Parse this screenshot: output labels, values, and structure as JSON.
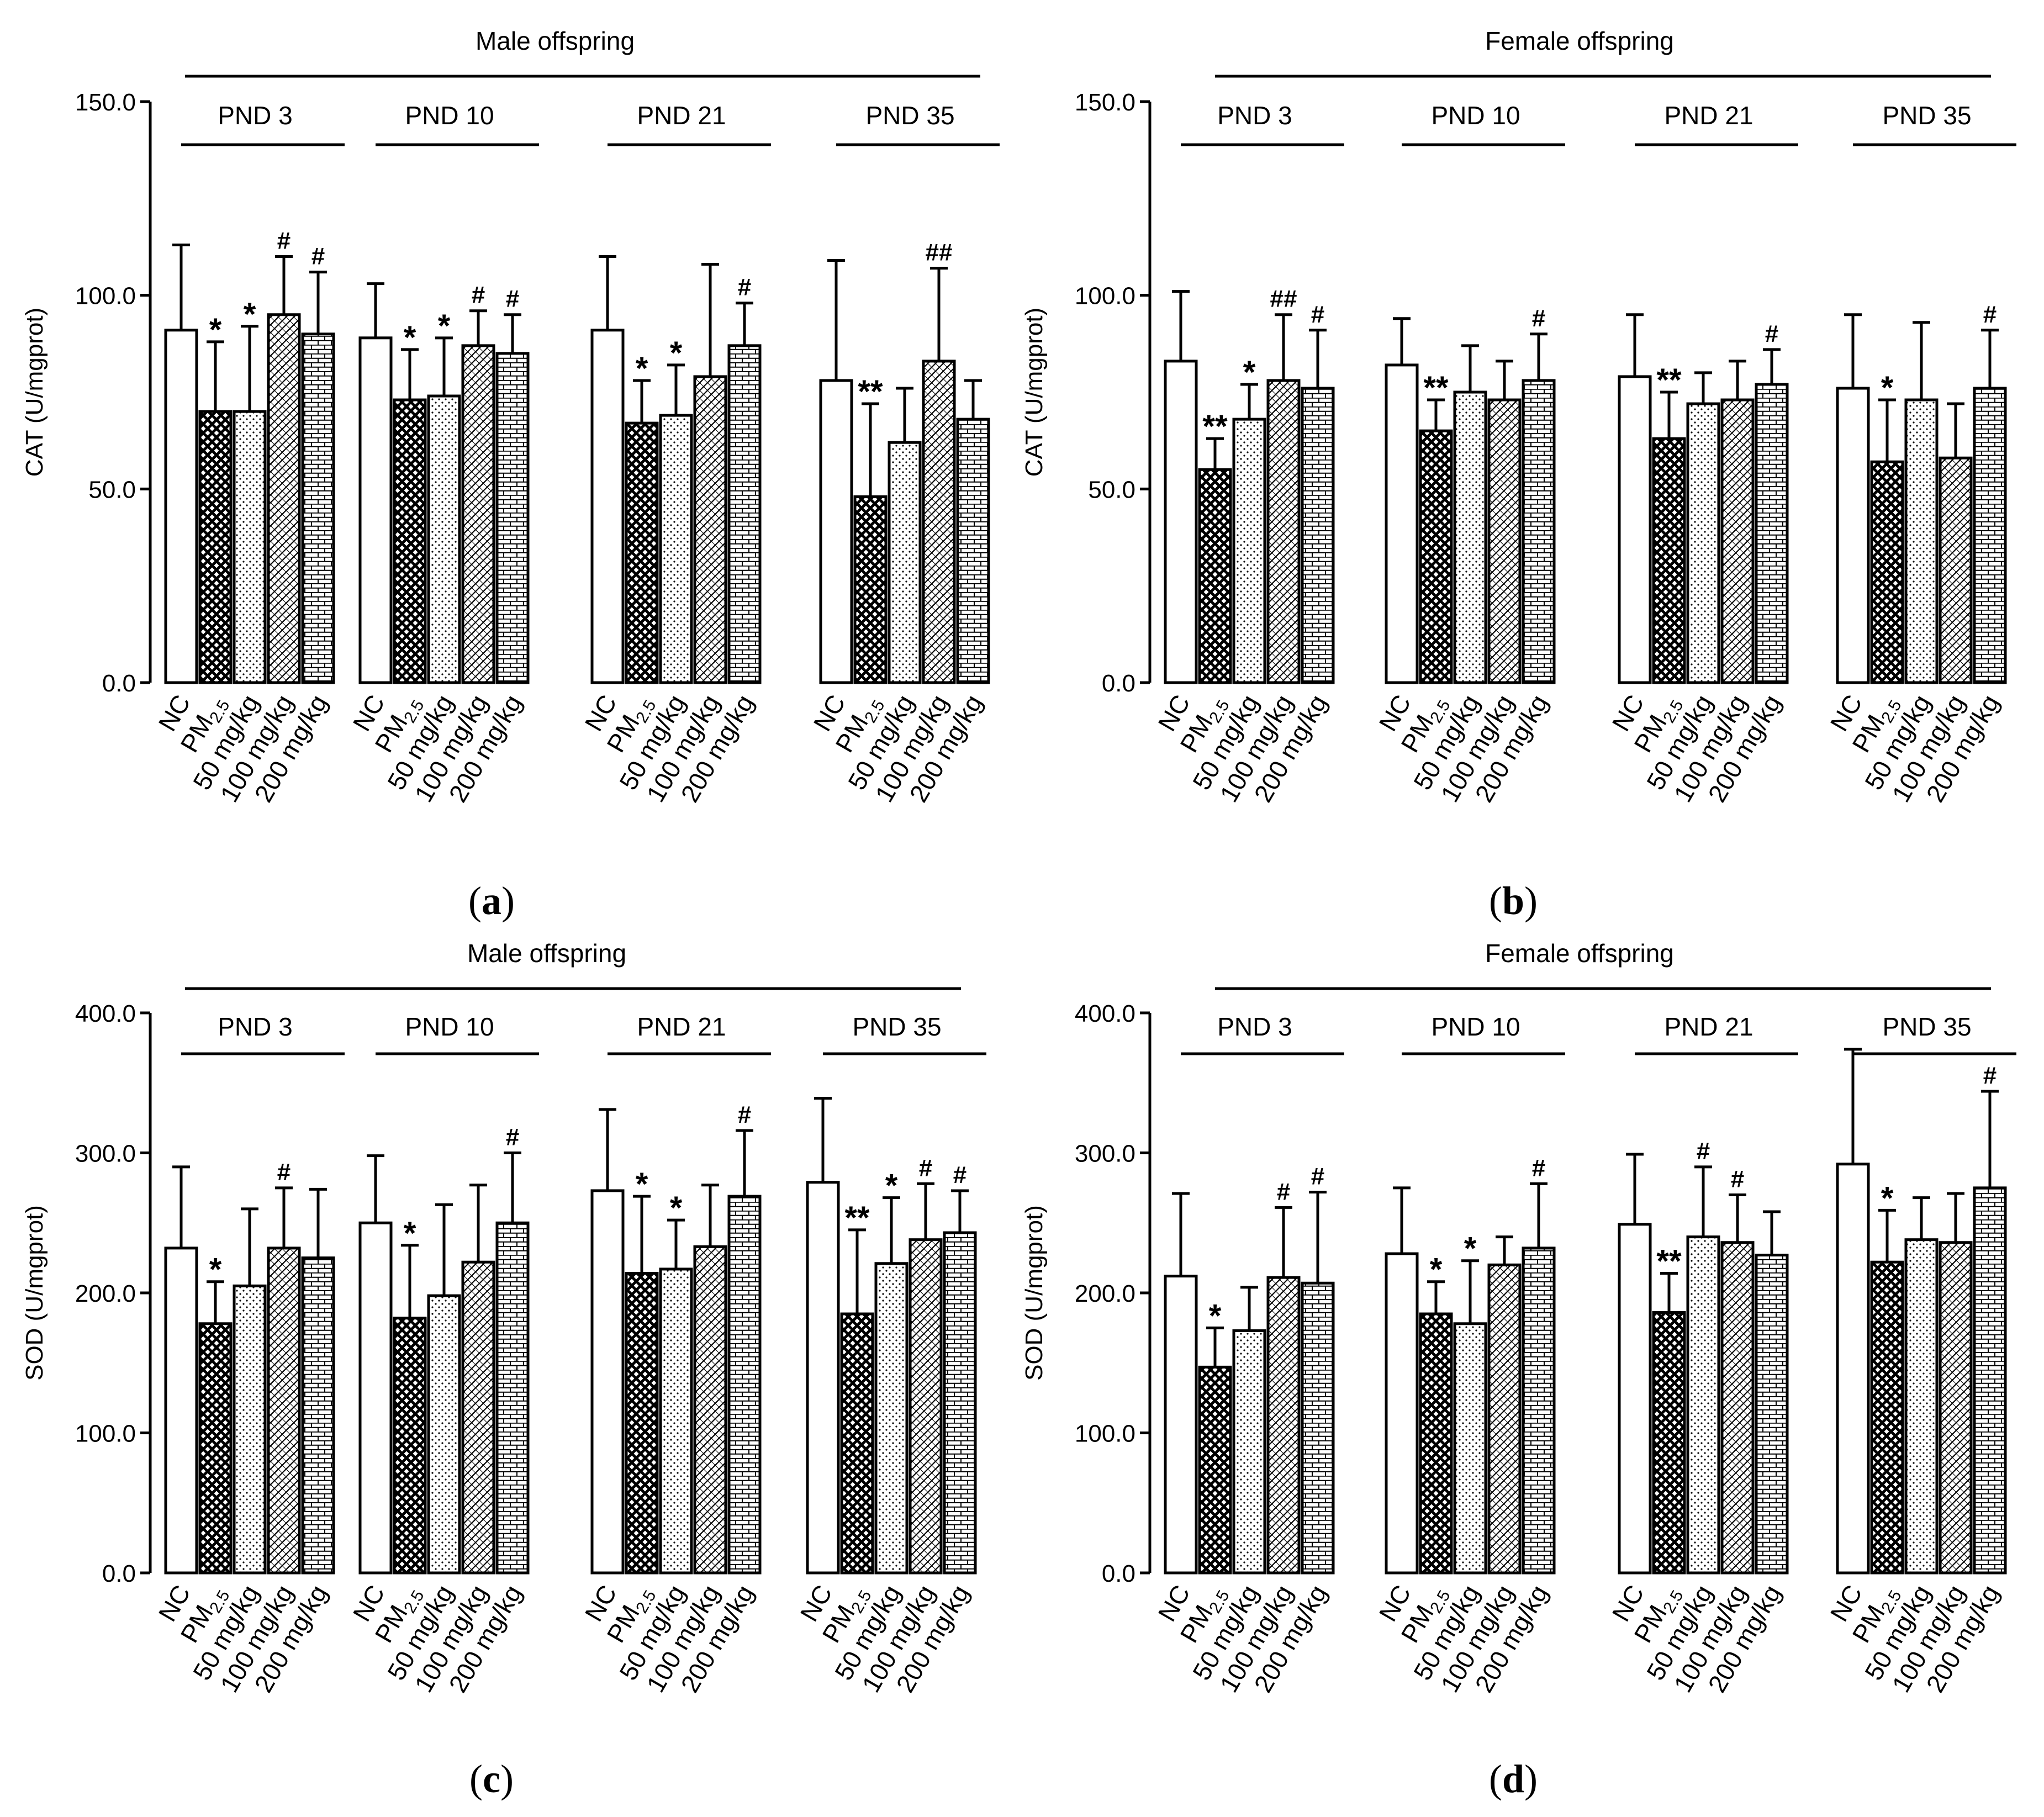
{
  "figure": {
    "group_labels": [
      "NC",
      "PM2.5",
      "50 mg/kg",
      "100 mg/kg",
      "200 mg/kg"
    ],
    "pm_label": {
      "base": "PM",
      "sub": "2.5"
    },
    "patterns": [
      "white",
      "crosshatch",
      "dots",
      "diagonal",
      "brick"
    ]
  },
  "chart_data": [
    {
      "type": "bar",
      "panel_label": "a",
      "title": "Male offspring",
      "ylabel": "CAT (U/mgprot)",
      "ylim": [
        0,
        150
      ],
      "yticks": [
        "0.0",
        "50.0",
        "100.0",
        "150.0"
      ],
      "ytick_values": [
        0,
        50,
        100,
        150
      ],
      "groups": [
        "PND 3",
        "PND 10",
        "PND 21",
        "PND 35"
      ],
      "categories": [
        "NC",
        "PM2.5",
        "50 mg/kg",
        "100 mg/kg",
        "200 mg/kg"
      ],
      "series": [
        {
          "name": "PND 3",
          "values": [
            91,
            70,
            70,
            95,
            90
          ],
          "errors": [
            22,
            18,
            22,
            15,
            16
          ],
          "marks": [
            "",
            "*",
            "*",
            "#",
            "#"
          ]
        },
        {
          "name": "PND 10",
          "values": [
            89,
            73,
            74,
            87,
            85
          ],
          "errors": [
            14,
            13,
            15,
            9,
            10
          ],
          "marks": [
            "",
            "*",
            "*",
            "#",
            "#"
          ]
        },
        {
          "name": "PND 21",
          "values": [
            91,
            67,
            69,
            79,
            87
          ],
          "errors": [
            19,
            11,
            13,
            29,
            11
          ],
          "marks": [
            "",
            "*",
            "*",
            "",
            "#"
          ]
        },
        {
          "name": "PND 35",
          "values": [
            78,
            48,
            62,
            83,
            68
          ],
          "errors": [
            31,
            24,
            14,
            24,
            10
          ],
          "marks": [
            "",
            "**",
            "",
            "##",
            ""
          ]
        }
      ]
    },
    {
      "type": "bar",
      "panel_label": "b",
      "title": "Female offspring",
      "ylabel": "CAT (U/mgprot)",
      "ylim": [
        0,
        150
      ],
      "yticks": [
        "0.0",
        "50.0",
        "100.0",
        "150.0"
      ],
      "ytick_values": [
        0,
        50,
        100,
        150
      ],
      "groups": [
        "PND 3",
        "PND 10",
        "PND 21",
        "PND 35"
      ],
      "categories": [
        "NC",
        "PM2.5",
        "50 mg/kg",
        "100 mg/kg",
        "200 mg/kg"
      ],
      "series": [
        {
          "name": "PND 3",
          "values": [
            83,
            55,
            68,
            78,
            76
          ],
          "errors": [
            18,
            8,
            9,
            17,
            15
          ],
          "marks": [
            "",
            "**",
            "*",
            "##",
            "#"
          ]
        },
        {
          "name": "PND 10",
          "values": [
            82,
            65,
            75,
            73,
            78
          ],
          "errors": [
            12,
            8,
            12,
            10,
            12
          ],
          "marks": [
            "",
            "**",
            "",
            "",
            "#"
          ]
        },
        {
          "name": "PND 21",
          "values": [
            79,
            63,
            72,
            73,
            77
          ],
          "errors": [
            16,
            12,
            8,
            10,
            9
          ],
          "marks": [
            "",
            "**",
            "",
            "",
            "#"
          ]
        },
        {
          "name": "PND 35",
          "values": [
            76,
            57,
            73,
            58,
            76
          ],
          "errors": [
            19,
            16,
            20,
            14,
            15
          ],
          "marks": [
            "",
            "*",
            "",
            "",
            "#"
          ]
        }
      ]
    },
    {
      "type": "bar",
      "panel_label": "c",
      "title": "Male offspring",
      "ylabel": "SOD (U/mgprot)",
      "ylim": [
        0,
        400
      ],
      "yticks": [
        "0.0",
        "100.0",
        "200.0",
        "300.0",
        "400.0"
      ],
      "ytick_values": [
        0,
        100,
        200,
        300,
        400
      ],
      "groups": [
        "PND 3",
        "PND 10",
        "PND 21",
        "PND 35"
      ],
      "categories": [
        "NC",
        "PM2.5",
        "50 mg/kg",
        "100 mg/kg",
        "200 mg/kg"
      ],
      "series": [
        {
          "name": "PND 3",
          "values": [
            232,
            178,
            205,
            232,
            225
          ],
          "errors": [
            58,
            30,
            55,
            43,
            49
          ],
          "marks": [
            "",
            "*",
            "",
            "#",
            ""
          ]
        },
        {
          "name": "PND 10",
          "values": [
            250,
            182,
            198,
            222,
            250
          ],
          "errors": [
            48,
            52,
            65,
            55,
            50
          ],
          "marks": [
            "",
            "*",
            "",
            "",
            "#"
          ]
        },
        {
          "name": "PND 21",
          "values": [
            273,
            214,
            217,
            233,
            269
          ],
          "errors": [
            58,
            55,
            35,
            44,
            47
          ],
          "marks": [
            "",
            "*",
            "*",
            "",
            "#"
          ]
        },
        {
          "name": "PND 35",
          "values": [
            279,
            185,
            221,
            238,
            243
          ],
          "errors": [
            60,
            60,
            47,
            40,
            30
          ],
          "marks": [
            "",
            "**",
            "*",
            "#",
            "#"
          ]
        }
      ]
    },
    {
      "type": "bar",
      "panel_label": "d",
      "title": "Female offspring",
      "ylabel": "SOD (U/mgprot)",
      "ylim": [
        0,
        400
      ],
      "yticks": [
        "0.0",
        "100.0",
        "200.0",
        "300.0",
        "400.0"
      ],
      "ytick_values": [
        0,
        100,
        200,
        300,
        400
      ],
      "groups": [
        "PND 3",
        "PND 10",
        "PND 21",
        "PND 35"
      ],
      "categories": [
        "NC",
        "PM2.5",
        "50 mg/kg",
        "100 mg/kg",
        "200 mg/kg"
      ],
      "series": [
        {
          "name": "PND 3",
          "values": [
            212,
            147,
            173,
            211,
            207
          ],
          "errors": [
            59,
            28,
            31,
            50,
            65
          ],
          "marks": [
            "",
            "*",
            "",
            "#",
            "#"
          ]
        },
        {
          "name": "PND 10",
          "values": [
            228,
            185,
            178,
            220,
            232
          ],
          "errors": [
            47,
            23,
            45,
            20,
            46
          ],
          "marks": [
            "",
            "*",
            "*",
            "",
            "#"
          ]
        },
        {
          "name": "PND 21",
          "values": [
            249,
            186,
            240,
            236,
            227
          ],
          "errors": [
            50,
            28,
            50,
            34,
            31
          ],
          "marks": [
            "",
            "**",
            "#",
            "#",
            ""
          ]
        },
        {
          "name": "PND 35",
          "values": [
            292,
            222,
            238,
            236,
            275
          ],
          "errors": [
            82,
            37,
            30,
            35,
            69
          ],
          "marks": [
            "",
            "*",
            "",
            "",
            "#"
          ]
        }
      ]
    }
  ]
}
